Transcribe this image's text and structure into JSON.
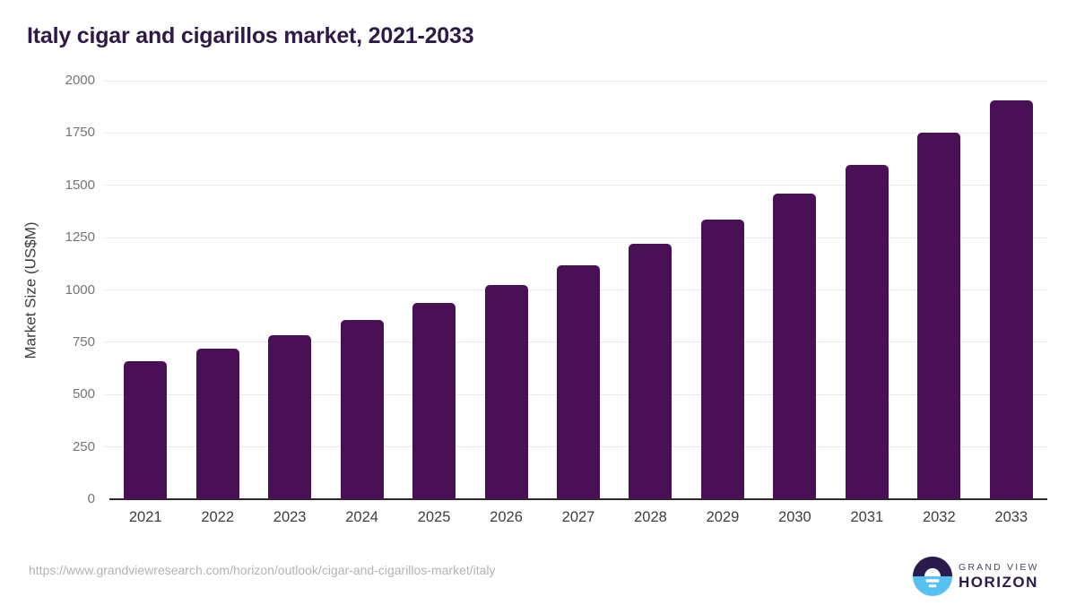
{
  "title": "Italy cigar and cigarillos market, 2021-2033",
  "footer": {
    "url": "https://www.grandviewresearch.com/horizon/outlook/cigar-and-cigarillos-market/italy",
    "logo": {
      "brand_top": "GRAND VIEW",
      "brand_bottom": "HORIZON",
      "icon": "horizon-sun-icon"
    }
  },
  "colors": {
    "bar": "#4a1056",
    "title": "#2e1a47",
    "grid": "#e8e8e8",
    "axis_line": "#2b2b2b",
    "tick_label": "#757575",
    "x_label": "#3d3d3d",
    "url": "#b3b3b3",
    "logo_dark": "#2b1b4d",
    "logo_blue": "#57c2f1"
  },
  "chart_data": {
    "type": "bar",
    "title": "Italy cigar and cigarillos market, 2021-2033",
    "categories": [
      "2021",
      "2022",
      "2023",
      "2024",
      "2025",
      "2026",
      "2027",
      "2028",
      "2029",
      "2030",
      "2031",
      "2032",
      "2033"
    ],
    "values": [
      660,
      718,
      784,
      857,
      938,
      1023,
      1118,
      1221,
      1336,
      1459,
      1596,
      1750,
      1906
    ],
    "xlabel": "",
    "ylabel": "Market Size (US$M)",
    "ylim": [
      0,
      2000
    ],
    "yticks": [
      0,
      250,
      500,
      750,
      1000,
      1250,
      1500,
      1750,
      2000
    ],
    "grid": true,
    "legend": false,
    "bar_color": "#4a1056"
  }
}
